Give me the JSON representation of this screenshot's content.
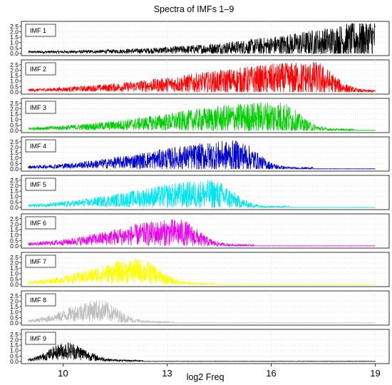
{
  "chart_data": {
    "type": "line",
    "title": "Spectra of IMFs 1–9",
    "xlabel": "log2 Freq",
    "ylabel": "",
    "xlim": [
      8.8,
      19.4
    ],
    "x_ticks": [
      "10",
      "13",
      "16",
      "19"
    ],
    "ylim": [
      0,
      2.75
    ],
    "y_ticks": [
      "0.0",
      "0.5",
      "1.0",
      "1.5",
      "2.0",
      "2.5"
    ],
    "grid": true,
    "panels": [
      {
        "label": "IMF  1",
        "color": "#000000",
        "peak_log2_freq": 19.0,
        "peak_amplitude": 2.5,
        "onset_log2_freq": 9.0
      },
      {
        "label": "IMF  2",
        "color": "#ff0000",
        "peak_log2_freq": 17.2,
        "peak_amplitude": 2.2,
        "onset_log2_freq": 9.0
      },
      {
        "label": "IMF  3",
        "color": "#00cd00",
        "peak_log2_freq": 16.2,
        "peak_amplitude": 2.2,
        "onset_log2_freq": 9.0
      },
      {
        "label": "IMF  4",
        "color": "#0000cd",
        "peak_log2_freq": 15.0,
        "peak_amplitude": 2.2,
        "onset_log2_freq": 9.0
      },
      {
        "label": "IMF  5",
        "color": "#00e5ee",
        "peak_log2_freq": 14.3,
        "peak_amplitude": 2.2,
        "onset_log2_freq": 9.0
      },
      {
        "label": "IMF  6",
        "color": "#ee00ee",
        "peak_log2_freq": 13.3,
        "peak_amplitude": 2.2,
        "onset_log2_freq": 9.0
      },
      {
        "label": "IMF  7",
        "color": "#ffff00",
        "peak_log2_freq": 12.2,
        "peak_amplitude": 2.2,
        "onset_log2_freq": 9.0
      },
      {
        "label": "IMF  8",
        "color": "#bebebe",
        "peak_log2_freq": 11.0,
        "peak_amplitude": 2.1,
        "onset_log2_freq": 9.0
      },
      {
        "label": "IMF  9",
        "color": "#000000",
        "peak_log2_freq": 10.1,
        "peak_amplitude": 1.8,
        "onset_log2_freq": 9.0
      }
    ]
  }
}
